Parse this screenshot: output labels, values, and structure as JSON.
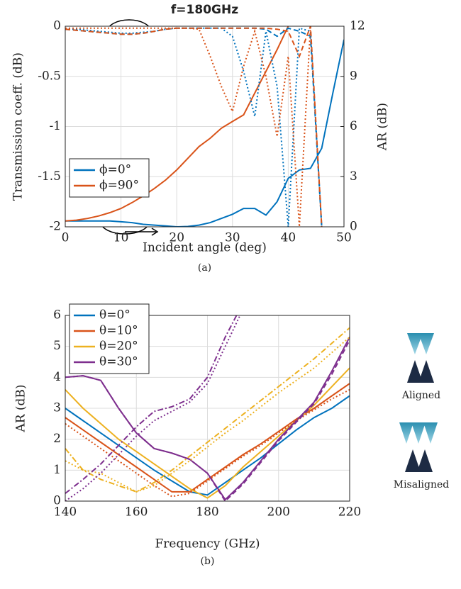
{
  "chart_data": [
    {
      "type": "line",
      "title": "f=180GHz",
      "x_label": "Incident angle (deg)",
      "y_label": "Transmission coeff. (dB)",
      "y2_label": "AR (dB)",
      "caption": "(a)",
      "x": [
        0,
        2,
        4,
        6,
        8,
        10,
        12,
        14,
        16,
        18,
        20,
        22,
        24,
        26,
        28,
        30,
        32,
        34,
        36,
        38,
        40,
        42,
        44,
        46,
        48,
        50
      ],
      "xlim": [
        0,
        50
      ],
      "xticks": [
        0,
        10,
        20,
        30,
        40,
        50
      ],
      "ylim": [
        -2,
        0
      ],
      "yticks": [
        -2,
        -1.5,
        -1,
        -0.5,
        0
      ],
      "y2lim": [
        0,
        12
      ],
      "y2ticks": [
        0,
        3,
        6,
        9,
        12
      ],
      "grid": true,
      "legend": "lower left",
      "series": [
        {
          "name": "ϕ=0°",
          "color": "#0072BD",
          "style": "solid",
          "axis": "y2",
          "values": [
            0.35,
            0.35,
            0.35,
            0.35,
            0.35,
            0.3,
            0.25,
            0.15,
            0.1,
            0.05,
            0.0,
            0.02,
            0.1,
            0.25,
            0.5,
            0.75,
            1.1,
            1.1,
            0.7,
            1.5,
            2.9,
            3.4,
            3.5,
            4.7,
            8.0,
            11.2
          ]
        },
        {
          "name": "ϕ=90°",
          "color": "#D95319",
          "style": "solid",
          "axis": "y2",
          "values": [
            0.35,
            0.4,
            0.5,
            0.65,
            0.85,
            1.1,
            1.45,
            1.85,
            2.3,
            2.8,
            3.4,
            4.1,
            4.8,
            5.3,
            5.9,
            6.3,
            6.7,
            8.0,
            9.3,
            10.6,
            12.0,
            null,
            null,
            null,
            null,
            null
          ]
        },
        {
          "color": "#0072BD",
          "style": "dashed",
          "values": [
            -0.03,
            -0.04,
            -0.05,
            -0.06,
            -0.07,
            -0.08,
            -0.08,
            -0.07,
            -0.05,
            -0.03,
            -0.02,
            -0.02,
            -0.02,
            -0.02,
            -0.02,
            -0.02,
            -0.02,
            -0.02,
            -0.03,
            -0.1,
            -0.02,
            -0.05,
            -0.1,
            -2.0,
            null,
            null
          ]
        },
        {
          "color": "#0072BD",
          "style": "dotted",
          "values": [
            -0.03,
            -0.03,
            -0.04,
            -0.05,
            -0.06,
            -0.07,
            -0.07,
            -0.06,
            -0.05,
            -0.03,
            -0.02,
            -0.02,
            -0.02,
            -0.02,
            -0.02,
            -0.1,
            -0.45,
            -0.9,
            -0.05,
            -0.6,
            -2.0,
            -0.02,
            -0.05,
            -2.0,
            null,
            null
          ]
        },
        {
          "color": "#D95319",
          "style": "dashed",
          "values": [
            -0.03,
            -0.04,
            -0.05,
            -0.06,
            -0.07,
            -0.08,
            -0.08,
            -0.07,
            -0.05,
            -0.03,
            -0.02,
            -0.02,
            -0.02,
            -0.02,
            -0.02,
            -0.02,
            -0.02,
            -0.02,
            -0.02,
            -0.03,
            -0.05,
            -0.3,
            0.0,
            -2.0,
            null,
            null
          ]
        },
        {
          "color": "#D95319",
          "style": "dotted",
          "values": [
            -0.02,
            -0.02,
            -0.02,
            -0.02,
            -0.02,
            -0.02,
            -0.02,
            -0.02,
            -0.02,
            -0.02,
            -0.02,
            -0.02,
            -0.03,
            -0.3,
            -0.6,
            -0.85,
            -0.4,
            -0.05,
            -0.5,
            -1.1,
            -0.3,
            -2.0,
            0.0,
            null,
            null,
            null
          ]
        }
      ]
    },
    {
      "type": "line",
      "x_label": "Frequency (GHz)",
      "y_label": "AR (dB)",
      "caption": "(b)",
      "x": [
        140,
        145,
        150,
        155,
        160,
        165,
        170,
        175,
        180,
        185,
        190,
        195,
        200,
        205,
        210,
        215,
        220
      ],
      "xlim": [
        140,
        220
      ],
      "xticks": [
        140,
        160,
        180,
        200,
        220
      ],
      "ylim": [
        0,
        6
      ],
      "yticks": [
        0,
        1,
        2,
        3,
        4,
        5,
        6
      ],
      "grid": true,
      "legend": "upper left",
      "series": [
        {
          "name": "θ=0°",
          "color": "#0072BD",
          "style": "solid",
          "values": [
            3.0,
            2.6,
            2.2,
            1.8,
            1.4,
            1.0,
            0.65,
            0.3,
            0.2,
            0.6,
            1.0,
            1.4,
            1.85,
            2.3,
            2.7,
            3.0,
            3.4
          ]
        },
        {
          "name": "θ=10°",
          "color": "#D95319",
          "style": "solid",
          "values": [
            2.7,
            2.3,
            1.9,
            1.5,
            1.1,
            0.7,
            0.3,
            0.3,
            0.7,
            1.1,
            1.5,
            1.85,
            2.25,
            2.65,
            3.0,
            3.4,
            3.8
          ]
        },
        {
          "name": "θ=20°",
          "color": "#EDB120",
          "style": "solid",
          "values": [
            3.6,
            3.0,
            2.5,
            2.0,
            1.6,
            1.2,
            0.8,
            0.4,
            0.1,
            0.5,
            1.1,
            1.6,
            2.1,
            2.6,
            3.1,
            3.7,
            4.3
          ]
        },
        {
          "name": "θ=30°",
          "color": "#7E2F8E",
          "style": "solid",
          "values": [
            4.0,
            4.05,
            3.9,
            3.0,
            2.2,
            1.7,
            1.55,
            1.35,
            0.9,
            0.05,
            0.6,
            1.3,
            2.0,
            2.6,
            3.2,
            4.2,
            5.3
          ]
        },
        {
          "color": "#D95319",
          "style": "dotted",
          "values": [
            2.5,
            2.1,
            1.7,
            1.3,
            0.9,
            0.5,
            0.15,
            0.25,
            0.65,
            1.05,
            1.45,
            1.8,
            2.2,
            2.6,
            2.95,
            3.3,
            3.6
          ]
        },
        {
          "color": "#EDB120",
          "style": "dotted",
          "values": [
            1.3,
            1.0,
            0.9,
            0.6,
            0.3,
            0.5,
            0.9,
            1.3,
            1.75,
            2.2,
            2.6,
            3.05,
            3.5,
            3.9,
            4.3,
            4.8,
            5.3
          ]
        },
        {
          "color": "#EDB120",
          "style": "dashdot",
          "values": [
            1.7,
            1.0,
            0.7,
            0.5,
            0.3,
            0.6,
            1.0,
            1.45,
            1.9,
            2.35,
            2.8,
            3.25,
            3.7,
            4.15,
            4.6,
            5.1,
            5.6
          ]
        },
        {
          "color": "#7E2F8E",
          "style": "dotted",
          "values": [
            0.0,
            0.4,
            0.9,
            1.5,
            2.1,
            2.6,
            2.9,
            3.2,
            3.8,
            5.0,
            6.2,
            null,
            null,
            null,
            null,
            null,
            null
          ]
        },
        {
          "color": "#7E2F8E",
          "style": "dashdot",
          "values": [
            0.25,
            0.7,
            1.2,
            1.8,
            2.4,
            2.9,
            3.05,
            3.3,
            4.0,
            5.3,
            6.4,
            null,
            null,
            null,
            null,
            null,
            null
          ]
        },
        {
          "color": "#7E2F8E",
          "style": "dashed",
          "values": [
            4.0,
            4.05,
            3.9,
            3.0,
            2.2,
            1.7,
            1.55,
            1.35,
            0.9,
            0.0,
            0.55,
            1.25,
            1.95,
            2.55,
            3.15,
            4.1,
            5.2
          ]
        }
      ]
    }
  ],
  "side_panel": {
    "labels": [
      "Aligned",
      "Misaligned"
    ]
  }
}
